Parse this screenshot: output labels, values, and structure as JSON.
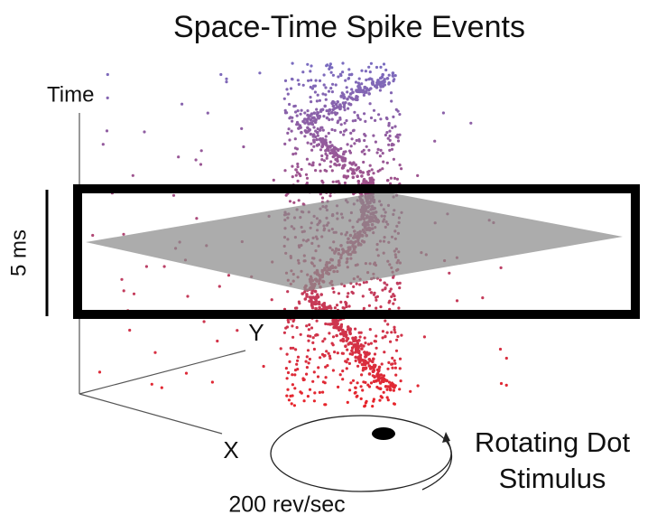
{
  "header": {
    "title": "Space-Time Spike Events"
  },
  "axes": {
    "time": "Time",
    "y": "Y",
    "x": "X"
  },
  "scale_bar": {
    "label": "5 ms"
  },
  "stimulus": {
    "label_lines": [
      "Rotating Dot",
      "Stimulus"
    ],
    "speed": "200 rev/sec"
  }
}
